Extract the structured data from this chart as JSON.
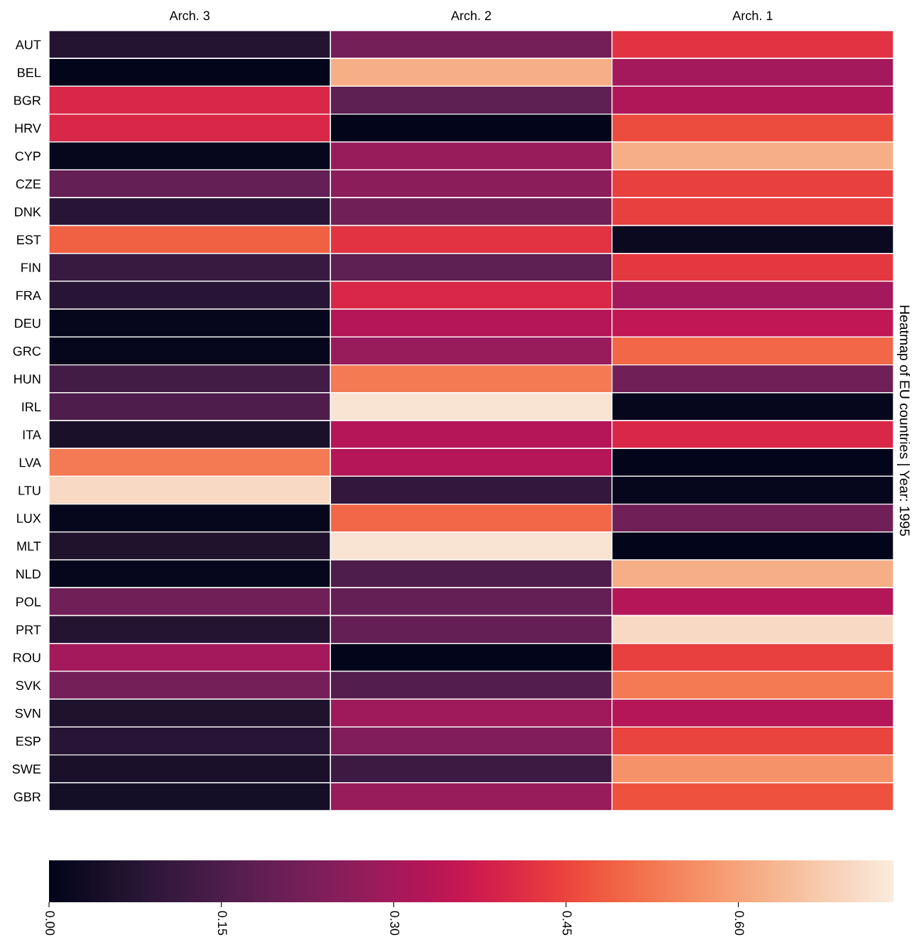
{
  "chart_data": {
    "type": "heatmap",
    "title": "Heatmap of EU countries | Year: 1995",
    "categories": [
      "Arch. 3",
      "Arch. 2",
      "Arch. 1"
    ],
    "y_categories": [
      "AUT",
      "BEL",
      "BGR",
      "HRV",
      "CYP",
      "CZE",
      "DNK",
      "EST",
      "FIN",
      "FRA",
      "DEU",
      "GRC",
      "HUN",
      "IRL",
      "ITA",
      "LVA",
      "LTU",
      "LUX",
      "MLT",
      "NLD",
      "POL",
      "PRT",
      "ROU",
      "SVK",
      "SVN",
      "ESP",
      "SWE",
      "GBR"
    ],
    "cells": [
      [
        0.07,
        0.22,
        0.42
      ],
      [
        0.0,
        0.62,
        0.3
      ],
      [
        0.4,
        0.18,
        0.32
      ],
      [
        0.4,
        0.0,
        0.46
      ],
      [
        0.01,
        0.28,
        0.62
      ],
      [
        0.19,
        0.26,
        0.44
      ],
      [
        0.08,
        0.21,
        0.44
      ],
      [
        0.49,
        0.42,
        0.02
      ],
      [
        0.11,
        0.18,
        0.43
      ],
      [
        0.08,
        0.4,
        0.3
      ],
      [
        0.01,
        0.33,
        0.35
      ],
      [
        0.01,
        0.28,
        0.5
      ],
      [
        0.13,
        0.53,
        0.21
      ],
      [
        0.15,
        0.72,
        0.01
      ],
      [
        0.05,
        0.33,
        0.4
      ],
      [
        0.53,
        0.33,
        0.0
      ],
      [
        0.7,
        0.1,
        0.01
      ],
      [
        0.01,
        0.5,
        0.21
      ],
      [
        0.06,
        0.72,
        0.0
      ],
      [
        0.01,
        0.15,
        0.62
      ],
      [
        0.21,
        0.19,
        0.33
      ],
      [
        0.07,
        0.19,
        0.7
      ],
      [
        0.3,
        0.0,
        0.44
      ],
      [
        0.22,
        0.16,
        0.53
      ],
      [
        0.06,
        0.29,
        0.33
      ],
      [
        0.08,
        0.24,
        0.45
      ],
      [
        0.05,
        0.12,
        0.57
      ],
      [
        0.04,
        0.28,
        0.47
      ]
    ],
    "clim": [
      0,
      0.735
    ],
    "cticks": [
      {
        "value": 0,
        "label": "0.00"
      },
      {
        "value": 0.15,
        "label": "0.15"
      },
      {
        "value": 0.3,
        "label": "0.30"
      },
      {
        "value": 0.45,
        "label": "0.45"
      },
      {
        "value": 0.6,
        "label": "0.60"
      }
    ]
  }
}
